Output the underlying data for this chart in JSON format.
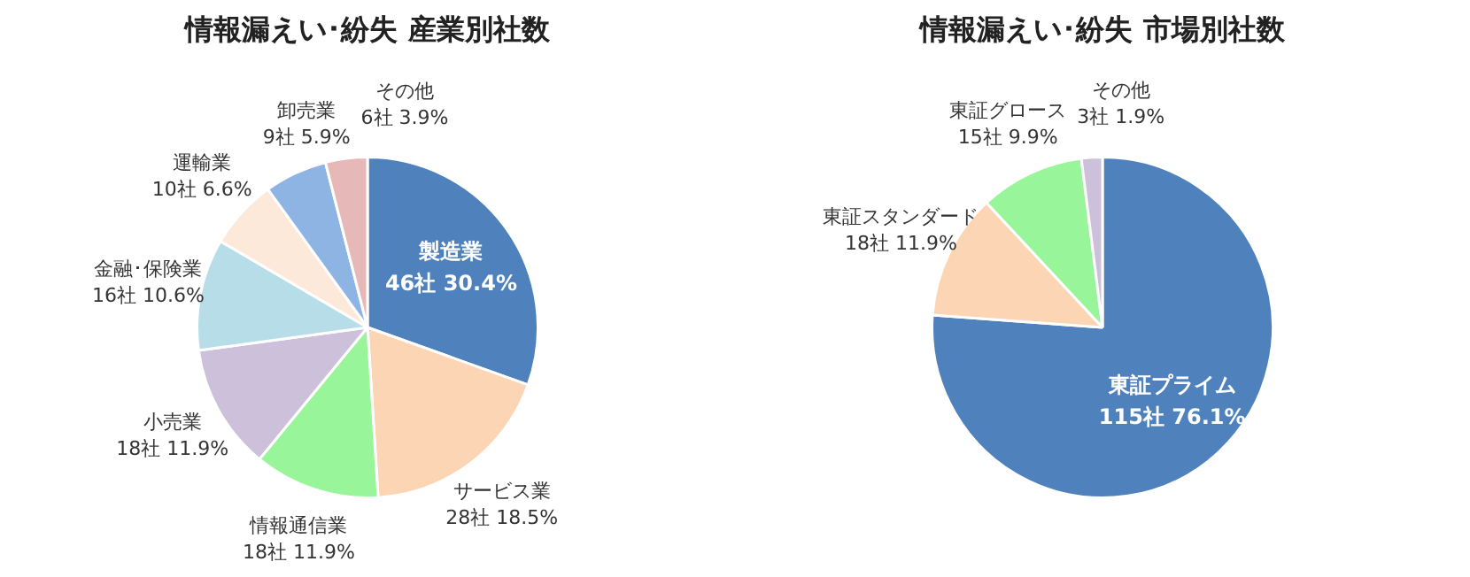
{
  "chart_data": [
    {
      "type": "pie",
      "title": "情報漏えい･紛失  産業別社数",
      "categories": [
        "製造業",
        "サービス業",
        "情報通信業",
        "小売業",
        "金融･保険業",
        "運輸業",
        "卸売業",
        "その他"
      ],
      "values": [
        46,
        28,
        18,
        18,
        16,
        10,
        9,
        6
      ],
      "value_labels": [
        "46社 30.4%",
        "28社 18.5%",
        "18社 11.9%",
        "18社 11.9%",
        "16社 10.6%",
        "10社 6.6%",
        "9社 5.9%",
        "6社 3.9%"
      ],
      "colors": [
        "#4f81bd",
        "#fcd5b5",
        "#99f59a",
        "#ccc0da",
        "#b7dee8",
        "#fde9d9",
        "#8eb4e3",
        "#e6b9b8"
      ],
      "legend": false
    },
    {
      "type": "pie",
      "title": "情報漏えい･紛失  市場別社数",
      "categories": [
        "東証プライム",
        "東証スタンダード",
        "東証グロース",
        "その他"
      ],
      "values": [
        115,
        18,
        15,
        3
      ],
      "value_labels": [
        "115社 76.1%",
        "18社 11.9%",
        "15社 9.9%",
        "3社 1.9%"
      ],
      "colors": [
        "#4f81bd",
        "#fcd5b5",
        "#99f59a",
        "#ccc0da"
      ],
      "legend": false
    }
  ]
}
